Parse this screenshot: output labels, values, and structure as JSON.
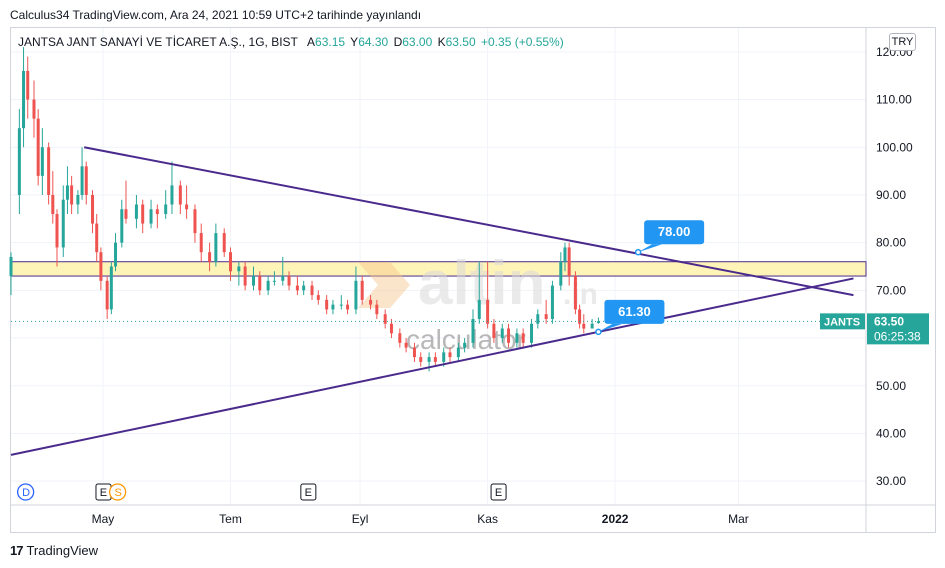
{
  "publication_line": "Calculus34 TradingView.com, Ara 24, 2021 10:59 UTC+2 tarihinde yayınlandı",
  "legend": {
    "symbol": "JANTSA JANT SANAYİ VE TİCARET A.Ş., 1G, BIST",
    "open_label": "A",
    "open": "63.15",
    "high_label": "Y",
    "high": "64.30",
    "low_label": "D",
    "low": "63.00",
    "close_label": "K",
    "close": "63.50",
    "change": "+0.35 (+0.55%)"
  },
  "currency": "TRY",
  "brand": "TradingView",
  "watermark": {
    "main": "altin",
    "tld": ".in",
    "sub": "calculator"
  },
  "colors": {
    "up": "#26a69a",
    "down": "#ef5350",
    "trend": "#4a2a8c",
    "zone_fill": "#fff4b8",
    "zone_border": "#4a2a8c",
    "callout": "#2196f3",
    "price_line": "#26a69a"
  },
  "chart_data": {
    "type": "candlestick",
    "title": "JANTSA JANT SANAYİ VE TİCARET A.Ş., 1G, BIST",
    "x_tick_labels": [
      "May",
      "Tem",
      "Eyl",
      "Kas",
      "2022",
      "Mar"
    ],
    "x_tick_dates": [
      "2021-05-01",
      "2021-07-01",
      "2021-09-01",
      "2021-11-01",
      "2022-01-01",
      "2022-03-01"
    ],
    "x_range": [
      "2021-03-18",
      "2022-05-01"
    ],
    "y_tick_labels": [
      "120.00",
      "110.00",
      "100.00",
      "90.00",
      "80.00",
      "70.00",
      "60.00",
      "50.00",
      "40.00",
      "30.00"
    ],
    "y_ticks": [
      120,
      110,
      100,
      90,
      80,
      70,
      60,
      50,
      40,
      30
    ],
    "ylim": [
      25,
      125
    ],
    "candles": [
      {
        "date": "2021-03-18",
        "o": 73,
        "h": 78,
        "l": 69,
        "c": 77
      },
      {
        "date": "2021-03-22",
        "o": 90,
        "h": 108,
        "l": 86,
        "c": 104
      },
      {
        "date": "2021-03-24",
        "o": 104,
        "h": 121,
        "l": 100,
        "c": 116
      },
      {
        "date": "2021-03-26",
        "o": 116,
        "h": 119,
        "l": 106,
        "c": 110
      },
      {
        "date": "2021-03-29",
        "o": 110,
        "h": 114,
        "l": 102,
        "c": 106
      },
      {
        "date": "2021-03-31",
        "o": 106,
        "h": 108,
        "l": 92,
        "c": 94
      },
      {
        "date": "2021-04-02",
        "o": 94,
        "h": 104,
        "l": 90,
        "c": 100
      },
      {
        "date": "2021-04-05",
        "o": 100,
        "h": 101,
        "l": 88,
        "c": 90
      },
      {
        "date": "2021-04-07",
        "o": 90,
        "h": 95,
        "l": 84,
        "c": 86
      },
      {
        "date": "2021-04-09",
        "o": 86,
        "h": 87,
        "l": 75,
        "c": 79
      },
      {
        "date": "2021-04-12",
        "o": 79,
        "h": 92,
        "l": 77,
        "c": 89
      },
      {
        "date": "2021-04-14",
        "o": 89,
        "h": 96,
        "l": 86,
        "c": 92
      },
      {
        "date": "2021-04-16",
        "o": 92,
        "h": 94,
        "l": 86,
        "c": 88
      },
      {
        "date": "2021-04-19",
        "o": 88,
        "h": 91,
        "l": 86,
        "c": 90
      },
      {
        "date": "2021-04-21",
        "o": 90,
        "h": 100,
        "l": 89,
        "c": 96
      },
      {
        "date": "2021-04-23",
        "o": 96,
        "h": 97,
        "l": 88,
        "c": 90
      },
      {
        "date": "2021-04-26",
        "o": 90,
        "h": 91,
        "l": 82,
        "c": 84
      },
      {
        "date": "2021-04-28",
        "o": 84,
        "h": 86,
        "l": 76,
        "c": 78
      },
      {
        "date": "2021-04-30",
        "o": 78,
        "h": 79,
        "l": 70,
        "c": 72
      },
      {
        "date": "2021-05-03",
        "o": 72,
        "h": 73,
        "l": 64,
        "c": 66
      },
      {
        "date": "2021-05-05",
        "o": 66,
        "h": 76,
        "l": 65,
        "c": 75
      },
      {
        "date": "2021-05-07",
        "o": 75,
        "h": 82,
        "l": 74,
        "c": 80
      },
      {
        "date": "2021-05-10",
        "o": 80,
        "h": 89,
        "l": 79,
        "c": 87
      },
      {
        "date": "2021-05-12",
        "o": 87,
        "h": 93,
        "l": 84,
        "c": 85
      },
      {
        "date": "2021-05-17",
        "o": 85,
        "h": 90,
        "l": 83,
        "c": 88
      },
      {
        "date": "2021-05-20",
        "o": 88,
        "h": 89,
        "l": 82,
        "c": 84
      },
      {
        "date": "2021-05-24",
        "o": 84,
        "h": 89,
        "l": 83,
        "c": 87
      },
      {
        "date": "2021-05-27",
        "o": 87,
        "h": 88,
        "l": 83,
        "c": 86
      },
      {
        "date": "2021-05-31",
        "o": 86,
        "h": 91,
        "l": 85,
        "c": 88
      },
      {
        "date": "2021-06-03",
        "o": 88,
        "h": 97,
        "l": 86,
        "c": 92
      },
      {
        "date": "2021-06-07",
        "o": 92,
        "h": 93,
        "l": 86,
        "c": 88
      },
      {
        "date": "2021-06-10",
        "o": 88,
        "h": 92,
        "l": 85,
        "c": 87
      },
      {
        "date": "2021-06-14",
        "o": 87,
        "h": 88,
        "l": 80,
        "c": 82
      },
      {
        "date": "2021-06-17",
        "o": 82,
        "h": 84,
        "l": 76,
        "c": 78
      },
      {
        "date": "2021-06-21",
        "o": 78,
        "h": 80,
        "l": 74,
        "c": 76
      },
      {
        "date": "2021-06-24",
        "o": 76,
        "h": 84,
        "l": 75,
        "c": 82
      },
      {
        "date": "2021-06-28",
        "o": 82,
        "h": 83,
        "l": 77,
        "c": 78
      },
      {
        "date": "2021-07-01",
        "o": 78,
        "h": 79,
        "l": 72,
        "c": 74
      },
      {
        "date": "2021-07-05",
        "o": 74,
        "h": 76,
        "l": 71,
        "c": 75
      },
      {
        "date": "2021-07-08",
        "o": 75,
        "h": 76,
        "l": 70,
        "c": 71
      },
      {
        "date": "2021-07-12",
        "o": 71,
        "h": 75,
        "l": 70,
        "c": 73
      },
      {
        "date": "2021-07-15",
        "o": 73,
        "h": 74,
        "l": 69,
        "c": 70
      },
      {
        "date": "2021-07-19",
        "o": 70,
        "h": 73,
        "l": 69,
        "c": 72
      },
      {
        "date": "2021-07-22",
        "o": 72,
        "h": 74,
        "l": 71,
        "c": 72
      },
      {
        "date": "2021-07-26",
        "o": 72,
        "h": 77,
        "l": 71,
        "c": 73
      },
      {
        "date": "2021-07-29",
        "o": 73,
        "h": 74,
        "l": 70,
        "c": 71
      },
      {
        "date": "2021-08-02",
        "o": 71,
        "h": 73,
        "l": 69,
        "c": 70
      },
      {
        "date": "2021-08-05",
        "o": 70,
        "h": 72,
        "l": 69,
        "c": 71
      },
      {
        "date": "2021-08-09",
        "o": 71,
        "h": 72,
        "l": 68,
        "c": 69
      },
      {
        "date": "2021-08-12",
        "o": 69,
        "h": 70,
        "l": 67,
        "c": 68
      },
      {
        "date": "2021-08-16",
        "o": 68,
        "h": 69,
        "l": 65,
        "c": 66
      },
      {
        "date": "2021-08-19",
        "o": 66,
        "h": 68,
        "l": 65,
        "c": 67
      },
      {
        "date": "2021-08-23",
        "o": 67,
        "h": 69,
        "l": 66,
        "c": 67
      },
      {
        "date": "2021-08-26",
        "o": 67,
        "h": 68,
        "l": 65,
        "c": 66
      },
      {
        "date": "2021-08-30",
        "o": 66,
        "h": 75,
        "l": 65,
        "c": 72
      },
      {
        "date": "2021-09-02",
        "o": 72,
        "h": 73,
        "l": 67,
        "c": 68
      },
      {
        "date": "2021-09-06",
        "o": 68,
        "h": 69,
        "l": 66,
        "c": 67
      },
      {
        "date": "2021-09-09",
        "o": 67,
        "h": 68,
        "l": 64,
        "c": 65
      },
      {
        "date": "2021-09-13",
        "o": 65,
        "h": 66,
        "l": 62,
        "c": 63
      },
      {
        "date": "2021-09-16",
        "o": 63,
        "h": 64,
        "l": 60,
        "c": 61
      },
      {
        "date": "2021-09-20",
        "o": 61,
        "h": 62,
        "l": 58,
        "c": 59
      },
      {
        "date": "2021-09-23",
        "o": 59,
        "h": 60,
        "l": 57,
        "c": 58
      },
      {
        "date": "2021-09-27",
        "o": 58,
        "h": 59,
        "l": 55,
        "c": 56
      },
      {
        "date": "2021-09-30",
        "o": 56,
        "h": 57,
        "l": 54,
        "c": 55
      },
      {
        "date": "2021-10-04",
        "o": 55,
        "h": 57,
        "l": 53,
        "c": 56
      },
      {
        "date": "2021-10-07",
        "o": 56,
        "h": 57,
        "l": 54,
        "c": 55
      },
      {
        "date": "2021-10-11",
        "o": 55,
        "h": 58,
        "l": 54,
        "c": 57
      },
      {
        "date": "2021-10-14",
        "o": 57,
        "h": 58,
        "l": 55,
        "c": 56
      },
      {
        "date": "2021-10-18",
        "o": 56,
        "h": 59,
        "l": 55,
        "c": 58
      },
      {
        "date": "2021-10-21",
        "o": 58,
        "h": 60,
        "l": 57,
        "c": 59
      },
      {
        "date": "2021-10-25",
        "o": 59,
        "h": 66,
        "l": 58,
        "c": 64
      },
      {
        "date": "2021-10-28",
        "o": 64,
        "h": 76,
        "l": 63,
        "c": 68
      },
      {
        "date": "2021-11-01",
        "o": 68,
        "h": 76,
        "l": 62,
        "c": 63
      },
      {
        "date": "2021-11-04",
        "o": 63,
        "h": 64,
        "l": 59,
        "c": 60
      },
      {
        "date": "2021-11-08",
        "o": 60,
        "h": 63,
        "l": 59,
        "c": 62
      },
      {
        "date": "2021-11-11",
        "o": 62,
        "h": 63,
        "l": 58,
        "c": 59
      },
      {
        "date": "2021-11-15",
        "o": 59,
        "h": 62,
        "l": 58,
        "c": 61
      },
      {
        "date": "2021-11-18",
        "o": 61,
        "h": 62,
        "l": 58,
        "c": 59
      },
      {
        "date": "2021-11-22",
        "o": 59,
        "h": 64,
        "l": 58,
        "c": 63
      },
      {
        "date": "2021-11-25",
        "o": 63,
        "h": 66,
        "l": 62,
        "c": 65
      },
      {
        "date": "2021-11-29",
        "o": 65,
        "h": 68,
        "l": 63,
        "c": 64
      },
      {
        "date": "2021-12-02",
        "o": 64,
        "h": 72,
        "l": 63,
        "c": 71
      },
      {
        "date": "2021-12-06",
        "o": 71,
        "h": 78,
        "l": 70,
        "c": 76
      },
      {
        "date": "2021-12-08",
        "o": 76,
        "h": 80,
        "l": 74,
        "c": 79
      },
      {
        "date": "2021-12-10",
        "o": 79,
        "h": 80,
        "l": 71,
        "c": 73
      },
      {
        "date": "2021-12-13",
        "o": 73,
        "h": 74,
        "l": 65,
        "c": 66
      },
      {
        "date": "2021-12-15",
        "o": 66,
        "h": 67,
        "l": 62,
        "c": 63
      },
      {
        "date": "2021-12-17",
        "o": 63,
        "h": 65,
        "l": 61,
        "c": 62
      },
      {
        "date": "2021-12-21",
        "o": 62,
        "h": 64,
        "l": 62,
        "c": 63
      },
      {
        "date": "2021-12-24",
        "o": 63.15,
        "h": 64.3,
        "l": 63,
        "c": 63.5
      }
    ],
    "resistance_zone": [
      73,
      76
    ],
    "trendlines": [
      {
        "from_date": "2021-04-22",
        "from_price": 100,
        "to_date": "2022-04-25",
        "to_price": 69
      },
      {
        "from_date": "2021-03-18",
        "from_price": 35.5,
        "to_date": "2022-04-25",
        "to_price": 72.5
      }
    ],
    "callouts": [
      {
        "label": "78.00",
        "date": "2022-01-12",
        "price": 78
      },
      {
        "label": "61.30",
        "date": "2021-12-24",
        "price": 61.3
      }
    ],
    "last_price": {
      "symbol": "JANTS",
      "price": "63.50",
      "countdown": "06:25:38",
      "value": 63.5
    },
    "event_markers": [
      {
        "date": "2021-03-25",
        "label": "D",
        "color": "#2962ff"
      },
      {
        "date": "2021-05-01",
        "label": "E",
        "color": "#131722"
      },
      {
        "date": "2021-05-08",
        "label": "S",
        "color": "#ff9800"
      },
      {
        "date": "2021-08-07",
        "label": "E",
        "color": "#131722"
      },
      {
        "date": "2021-11-06",
        "label": "E",
        "color": "#131722"
      }
    ]
  }
}
